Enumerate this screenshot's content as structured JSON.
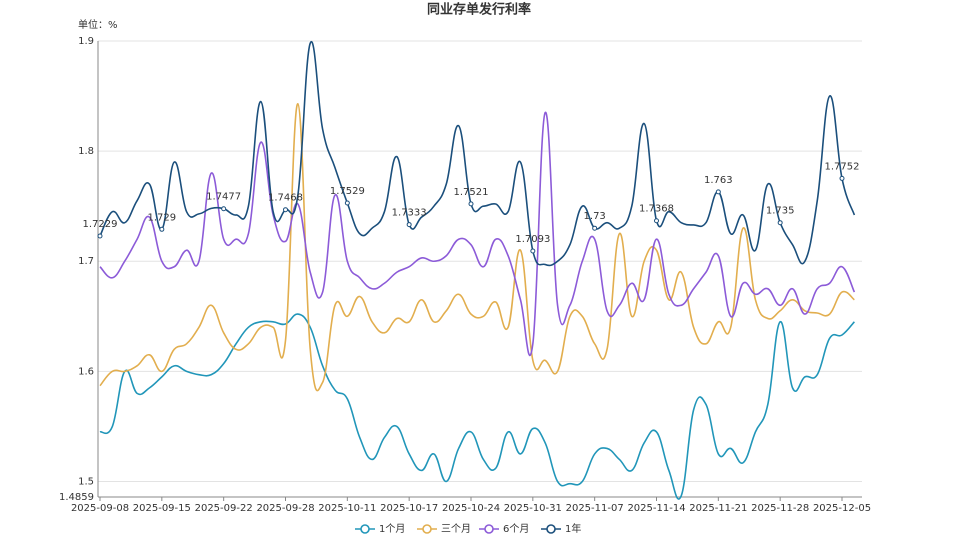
{
  "chart_data": {
    "type": "line",
    "title": "同业存单发行利率",
    "y_label": "单位：%",
    "categories": [
      "2025-09-08",
      null,
      null,
      null,
      null,
      "2025-09-15",
      null,
      null,
      null,
      null,
      "2025-09-22",
      null,
      null,
      null,
      null,
      "2025-09-28",
      null,
      null,
      null,
      null,
      "2025-10-11",
      null,
      null,
      null,
      null,
      "2025-10-17",
      null,
      null,
      null,
      null,
      "2025-10-24",
      null,
      null,
      null,
      null,
      "2025-10-31",
      null,
      null,
      null,
      null,
      "2025-11-07",
      null,
      null,
      null,
      null,
      "2025-11-14",
      null,
      null,
      null,
      null,
      "2025-11-21",
      null,
      null,
      null,
      null,
      "2025-11-28",
      null,
      null,
      null,
      null,
      "2025-12-05",
      null
    ],
    "ylim": [
      1.4859,
      1.9
    ],
    "yticks": [
      1.4859,
      1.5,
      1.6,
      1.7,
      1.8,
      1.9
    ],
    "grid": true,
    "series": [
      {
        "name": "1个月",
        "color": "#2196b9",
        "values": [
          1.545,
          1.55,
          1.6,
          1.58,
          1.585,
          1.595,
          1.605,
          1.6,
          1.597,
          1.597,
          1.607,
          1.625,
          1.64,
          1.645,
          1.645,
          1.643,
          1.652,
          1.64,
          1.605,
          1.583,
          1.575,
          1.54,
          1.52,
          1.54,
          1.55,
          1.525,
          1.51,
          1.525,
          1.5,
          1.53,
          1.545,
          1.52,
          1.512,
          1.545,
          1.525,
          1.548,
          1.535,
          1.5,
          1.498,
          1.5,
          1.525,
          1.53,
          1.52,
          1.51,
          1.535,
          1.545,
          1.51,
          1.487,
          1.565,
          1.57,
          1.525,
          1.53,
          1.517,
          1.545,
          1.57,
          1.645,
          1.585,
          1.595,
          1.597,
          1.63,
          1.633,
          1.645
        ]
      },
      {
        "name": "三个月",
        "color": "#e2ae4e",
        "values": [
          1.587,
          1.6,
          1.6,
          1.605,
          1.615,
          1.6,
          1.62,
          1.625,
          1.64,
          1.66,
          1.635,
          1.62,
          1.625,
          1.64,
          1.64,
          1.628,
          1.843,
          1.62,
          1.59,
          1.66,
          1.65,
          1.668,
          1.645,
          1.635,
          1.648,
          1.645,
          1.665,
          1.645,
          1.655,
          1.67,
          1.652,
          1.65,
          1.663,
          1.64,
          1.71,
          1.61,
          1.61,
          1.6,
          1.65,
          1.65,
          1.625,
          1.62,
          1.725,
          1.65,
          1.7,
          1.71,
          1.665,
          1.69,
          1.64,
          1.625,
          1.645,
          1.64,
          1.73,
          1.665,
          1.648,
          1.655,
          1.665,
          1.655,
          1.653,
          1.652,
          1.672,
          1.665
        ]
      },
      {
        "name": "6个月",
        "color": "#8c5bd8",
        "values": [
          1.695,
          1.685,
          1.7,
          1.72,
          1.74,
          1.7,
          1.695,
          1.71,
          1.7,
          1.78,
          1.72,
          1.72,
          1.725,
          1.808,
          1.742,
          1.718,
          1.752,
          1.69,
          1.672,
          1.76,
          1.7,
          1.685,
          1.675,
          1.68,
          1.69,
          1.695,
          1.703,
          1.7,
          1.705,
          1.72,
          1.715,
          1.695,
          1.72,
          1.705,
          1.665,
          1.625,
          1.835,
          1.66,
          1.66,
          1.7,
          1.72,
          1.655,
          1.66,
          1.68,
          1.665,
          1.72,
          1.67,
          1.66,
          1.675,
          1.69,
          1.705,
          1.65,
          1.68,
          1.67,
          1.675,
          1.66,
          1.675,
          1.652,
          1.675,
          1.68,
          1.695,
          1.672
        ]
      },
      {
        "name": "1年",
        "color": "#1b4f7c",
        "values": [
          1.7229,
          1.745,
          1.735,
          1.755,
          1.77,
          1.729,
          1.79,
          1.745,
          1.743,
          1.748,
          1.7477,
          1.742,
          1.75,
          1.845,
          1.745,
          1.7468,
          1.76,
          1.898,
          1.82,
          1.785,
          1.7529,
          1.725,
          1.73,
          1.745,
          1.795,
          1.7333,
          1.74,
          1.75,
          1.77,
          1.823,
          1.7521,
          1.75,
          1.752,
          1.745,
          1.79,
          1.7093,
          1.697,
          1.7,
          1.715,
          1.75,
          1.73,
          1.735,
          1.73,
          1.75,
          1.825,
          1.7368,
          1.745,
          1.735,
          1.733,
          1.735,
          1.763,
          1.725,
          1.742,
          1.71,
          1.77,
          1.735,
          1.715,
          1.7,
          1.755,
          1.85,
          1.7752,
          1.742
        ],
        "value_labels": [
          "1.7229",
          null,
          null,
          null,
          null,
          "1.729",
          null,
          null,
          null,
          null,
          "1.7477",
          null,
          null,
          null,
          null,
          "1.7468",
          null,
          null,
          null,
          null,
          "1.7529",
          null,
          null,
          null,
          null,
          "1.7333",
          null,
          null,
          null,
          null,
          "1.7521",
          null,
          null,
          null,
          null,
          "1.7093",
          null,
          null,
          null,
          null,
          "1.73",
          null,
          null,
          null,
          null,
          "1.7368",
          null,
          null,
          null,
          null,
          "1.763",
          null,
          null,
          null,
          null,
          "1.735",
          null,
          null,
          null,
          null,
          "1.7752",
          null
        ]
      }
    ]
  }
}
